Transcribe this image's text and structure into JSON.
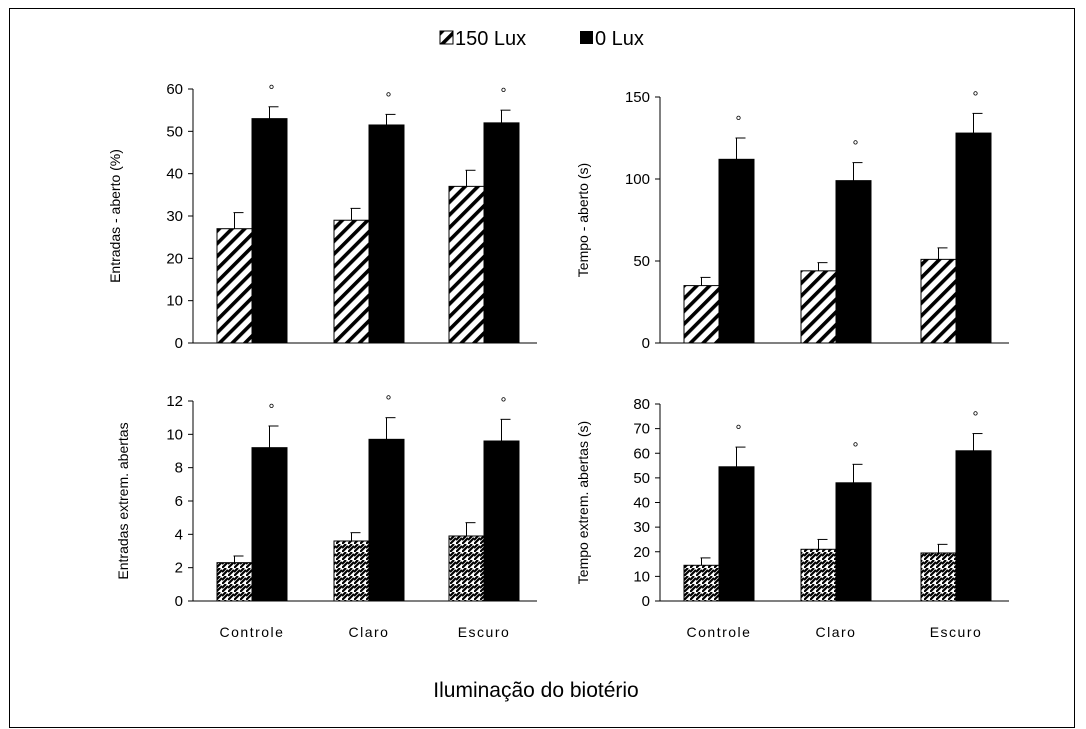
{
  "legend": [
    {
      "label": "150 Lux",
      "fill": "hatch"
    },
    {
      "label": "0 Lux",
      "fill": "#000000"
    }
  ],
  "x_title": "Iluminação do biotério",
  "chart_data": [
    {
      "type": "bar",
      "ylabel": "Entradas - aberto (%)",
      "ylim": [
        0,
        60
      ],
      "yticks": [
        0,
        10,
        20,
        30,
        40,
        50,
        60
      ],
      "categories": [
        "Controle",
        "Claro",
        "Escuro"
      ],
      "show_category_labels": false,
      "series": [
        {
          "name": "150 Lux",
          "values": [
            27,
            29,
            37
          ],
          "errors": [
            3.8,
            2.8,
            3.8
          ]
        },
        {
          "name": "0 Lux",
          "values": [
            53,
            51.5,
            52
          ],
          "errors": [
            2.8,
            2.5,
            3
          ]
        }
      ],
      "markers": [
        "°",
        "°",
        "°"
      ]
    },
    {
      "type": "bar",
      "ylabel": "Tempo - aberto (s)",
      "ylim": [
        0,
        150
      ],
      "yticks": [
        0,
        50,
        100,
        150
      ],
      "categories": [
        "Controle",
        "Claro",
        "Escuro"
      ],
      "show_category_labels": false,
      "series": [
        {
          "name": "150 Lux",
          "values": [
            35,
            44,
            51
          ],
          "errors": [
            5,
            5,
            7
          ]
        },
        {
          "name": "0 Lux",
          "values": [
            112,
            99,
            128
          ],
          "errors": [
            13,
            11,
            12
          ]
        }
      ],
      "markers": [
        "°",
        "°",
        "°"
      ]
    },
    {
      "type": "bar",
      "ylabel": "Entradas extrem. abertas",
      "ylim": [
        0,
        12
      ],
      "yticks": [
        0,
        2,
        4,
        6,
        8,
        10,
        12
      ],
      "categories": [
        "Controle",
        "Claro",
        "Escuro"
      ],
      "show_category_labels": true,
      "series": [
        {
          "name": "150 Lux",
          "values": [
            2.3,
            3.6,
            3.9
          ],
          "errors": [
            0.4,
            0.5,
            0.8
          ]
        },
        {
          "name": "0 Lux",
          "values": [
            9.2,
            9.7,
            9.6
          ],
          "errors": [
            1.3,
            1.3,
            1.3
          ]
        }
      ],
      "markers": [
        "°",
        "°",
        "°"
      ]
    },
    {
      "type": "bar",
      "ylabel": "Tempo extrem. abertas (s)",
      "ylim": [
        0,
        80
      ],
      "yticks": [
        0,
        10,
        20,
        30,
        40,
        50,
        60,
        70,
        80
      ],
      "categories": [
        "Controle",
        "Claro",
        "Escuro"
      ],
      "show_category_labels": true,
      "series": [
        {
          "name": "150 Lux",
          "values": [
            14.5,
            21,
            19.5
          ],
          "errors": [
            3,
            4,
            3.5
          ]
        },
        {
          "name": "0 Lux",
          "values": [
            54.5,
            48,
            61
          ],
          "errors": [
            8,
            7.5,
            7
          ]
        }
      ],
      "markers": [
        "°",
        "°",
        "°"
      ]
    }
  ]
}
